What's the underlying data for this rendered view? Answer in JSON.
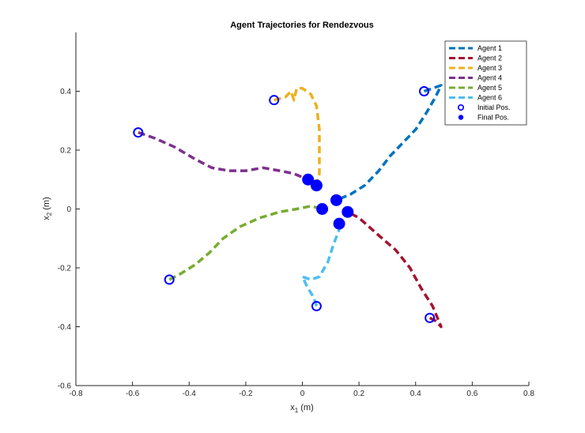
{
  "chart_data": {
    "type": "line",
    "title": "Agent Trajectories for Rendezvous",
    "xlabel_base": "x",
    "xlabel_sub": "1",
    "xlabel_unit": " (m)",
    "ylabel_base": "x",
    "ylabel_sub": "2",
    "ylabel_unit": " (m)",
    "xlim": [
      -0.8,
      0.8
    ],
    "ylim": [
      -0.6,
      0.6
    ],
    "xticks": [
      -0.8,
      -0.6,
      -0.4,
      -0.2,
      0,
      0.2,
      0.4,
      0.6,
      0.8
    ],
    "yticks": [
      -0.6,
      -0.4,
      -0.2,
      0,
      0.2,
      0.4
    ],
    "xtick_labels": [
      "-0.8",
      "-0.6",
      "-0.4",
      "-0.2",
      "0",
      "0.2",
      "0.4",
      "0.6",
      "0.8"
    ],
    "ytick_labels": [
      "-0.6",
      "-0.4",
      "-0.2",
      "0",
      "0.2",
      "0.4"
    ],
    "grid": false,
    "legend_position": "top-right",
    "series": [
      {
        "name": "Agent 1",
        "color": "#0072BD",
        "points": [
          [
            0.43,
            0.4
          ],
          [
            0.46,
            0.41
          ],
          [
            0.49,
            0.42
          ],
          [
            0.47,
            0.38
          ],
          [
            0.44,
            0.33
          ],
          [
            0.4,
            0.27
          ],
          [
            0.35,
            0.22
          ],
          [
            0.31,
            0.18
          ],
          [
            0.27,
            0.13
          ],
          [
            0.22,
            0.08
          ],
          [
            0.17,
            0.05
          ],
          [
            0.12,
            0.03
          ]
        ],
        "initial": [
          0.43,
          0.4
        ],
        "final": [
          0.12,
          0.03
        ]
      },
      {
        "name": "Agent 2",
        "color": "#A2142F",
        "points": [
          [
            0.45,
            -0.37
          ],
          [
            0.47,
            -0.38
          ],
          [
            0.49,
            -0.4
          ],
          [
            0.46,
            -0.33
          ],
          [
            0.42,
            -0.27
          ],
          [
            0.38,
            -0.2
          ],
          [
            0.33,
            -0.14
          ],
          [
            0.27,
            -0.09
          ],
          [
            0.2,
            -0.03
          ],
          [
            0.16,
            -0.01
          ]
        ],
        "initial": [
          0.45,
          -0.37
        ],
        "final": [
          0.16,
          -0.01
        ]
      },
      {
        "name": "Agent 3",
        "color": "#EDB120",
        "points": [
          [
            -0.1,
            0.37
          ],
          [
            -0.06,
            0.38
          ],
          [
            -0.04,
            0.4
          ],
          [
            -0.03,
            0.37
          ],
          [
            -0.02,
            0.41
          ],
          [
            0.0,
            0.41
          ],
          [
            0.03,
            0.39
          ],
          [
            0.05,
            0.35
          ],
          [
            0.06,
            0.27
          ],
          [
            0.06,
            0.18
          ],
          [
            0.06,
            0.12
          ],
          [
            0.05,
            0.08
          ]
        ],
        "initial": [
          -0.1,
          0.37
        ],
        "final": [
          0.05,
          0.08
        ]
      },
      {
        "name": "Agent 4",
        "color": "#7E2F8E",
        "points": [
          [
            -0.58,
            0.26
          ],
          [
            -0.52,
            0.24
          ],
          [
            -0.45,
            0.21
          ],
          [
            -0.38,
            0.17
          ],
          [
            -0.32,
            0.14
          ],
          [
            -0.26,
            0.13
          ],
          [
            -0.2,
            0.13
          ],
          [
            -0.14,
            0.14
          ],
          [
            -0.08,
            0.13
          ],
          [
            -0.03,
            0.12
          ],
          [
            0.02,
            0.1
          ]
        ],
        "initial": [
          -0.58,
          0.26
        ],
        "final": [
          0.02,
          0.1
        ]
      },
      {
        "name": "Agent 5",
        "color": "#77AC30",
        "points": [
          [
            -0.47,
            -0.24
          ],
          [
            -0.43,
            -0.22
          ],
          [
            -0.38,
            -0.19
          ],
          [
            -0.33,
            -0.15
          ],
          [
            -0.28,
            -0.1
          ],
          [
            -0.22,
            -0.06
          ],
          [
            -0.15,
            -0.03
          ],
          [
            -0.08,
            -0.01
          ],
          [
            -0.02,
            0.0
          ],
          [
            0.03,
            0.01
          ],
          [
            0.07,
            0.0
          ]
        ],
        "initial": [
          -0.47,
          -0.24
        ],
        "final": [
          0.07,
          0.0
        ]
      },
      {
        "name": "Agent 6",
        "color": "#4DBEEE",
        "points": [
          [
            0.05,
            -0.33
          ],
          [
            0.04,
            -0.3
          ],
          [
            0.02,
            -0.27
          ],
          [
            0.0,
            -0.23
          ],
          [
            0.03,
            -0.24
          ],
          [
            0.06,
            -0.23
          ],
          [
            0.09,
            -0.18
          ],
          [
            0.11,
            -0.12
          ],
          [
            0.13,
            -0.07
          ],
          [
            0.13,
            -0.05
          ]
        ],
        "initial": [
          0.05,
          -0.33
        ],
        "final": [
          0.13,
          -0.05
        ]
      }
    ],
    "legend_marker_labels": [
      "Initial Pos.",
      "Final Pos."
    ],
    "marker_color": "#0000FF"
  }
}
